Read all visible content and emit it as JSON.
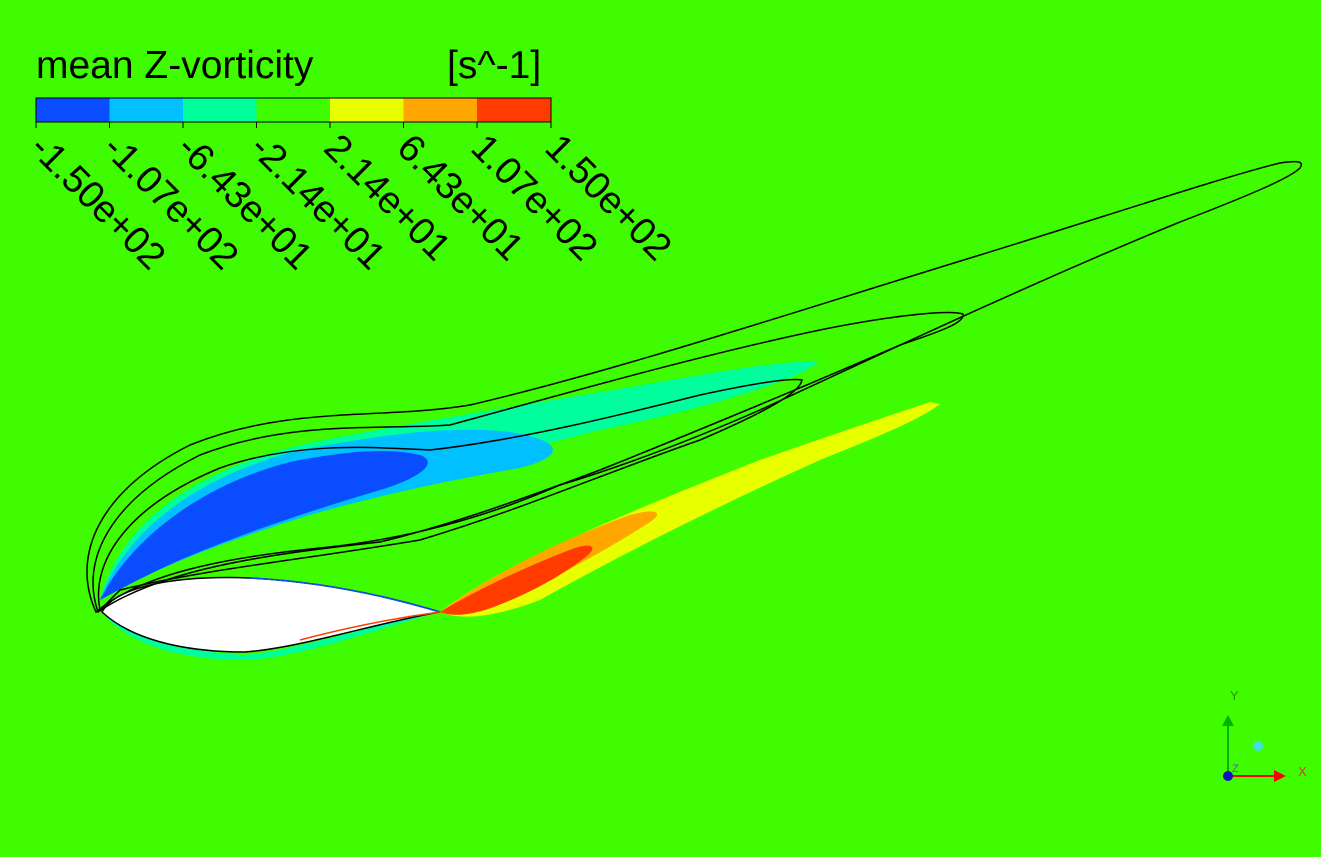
{
  "legend": {
    "title": "mean Z-vorticity",
    "unit": "[s^-1]",
    "ticks": [
      "-1.50e+02",
      "-1.07e+02",
      "-6.43e+01",
      "-2.14e+01",
      "2.14e+01",
      "6.43e+01",
      "1.07e+02",
      "1.50e+02"
    ],
    "colors": [
      "#0a4cff",
      "#00c0ff",
      "#00ff9c",
      "#3ffc00",
      "#e8ff00",
      "#ffa600",
      "#ff3b00"
    ]
  },
  "axes_triad": {
    "y_label": "Y",
    "x_label": "X",
    "z_label": "Z"
  },
  "colors": {
    "background": "#3ffc00",
    "contour_line": "#000000",
    "airfoil_fill": "#ffffff"
  }
}
